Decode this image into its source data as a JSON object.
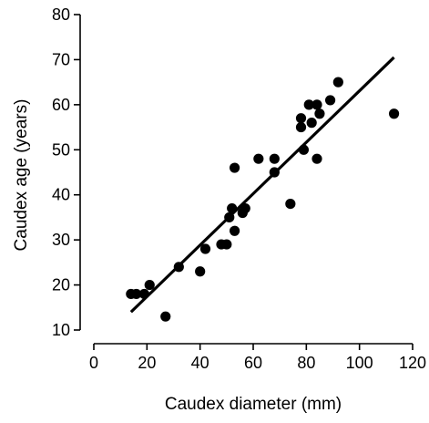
{
  "chart_data": {
    "type": "scatter",
    "title": "",
    "xlabel": "Caudex diameter (mm)",
    "ylabel": "Caudex age (years)",
    "xlim": [
      0,
      120
    ],
    "ylim": [
      10,
      80
    ],
    "x_ticks": [
      0,
      20,
      40,
      60,
      80,
      100,
      120
    ],
    "y_ticks": [
      10,
      20,
      30,
      40,
      50,
      60,
      70,
      80
    ],
    "grid": false,
    "legend": "none",
    "colors": {
      "points": "#000000",
      "line": "#000000",
      "axes": "#000000"
    },
    "series": [
      {
        "points": [
          [
            14,
            18
          ],
          [
            16,
            18
          ],
          [
            19,
            18
          ],
          [
            21,
            20
          ],
          [
            27,
            13
          ],
          [
            32,
            24
          ],
          [
            40,
            23
          ],
          [
            42,
            28
          ],
          [
            48,
            29
          ],
          [
            50,
            29
          ],
          [
            51,
            35
          ],
          [
            52,
            37
          ],
          [
            53,
            46
          ],
          [
            53,
            32
          ],
          [
            56,
            36
          ],
          [
            57,
            37
          ],
          [
            62,
            48
          ],
          [
            68,
            48
          ],
          [
            68,
            45
          ],
          [
            74,
            38
          ],
          [
            78,
            55
          ],
          [
            78,
            57
          ],
          [
            79,
            50
          ],
          [
            81,
            60
          ],
          [
            82,
            56
          ],
          [
            84,
            48
          ],
          [
            84,
            60
          ],
          [
            85,
            58
          ],
          [
            89,
            61
          ],
          [
            92,
            65
          ],
          [
            113,
            58
          ]
        ]
      }
    ],
    "fit_line": {
      "x": [
        14,
        113
      ],
      "y": [
        14,
        70.5
      ]
    }
  }
}
